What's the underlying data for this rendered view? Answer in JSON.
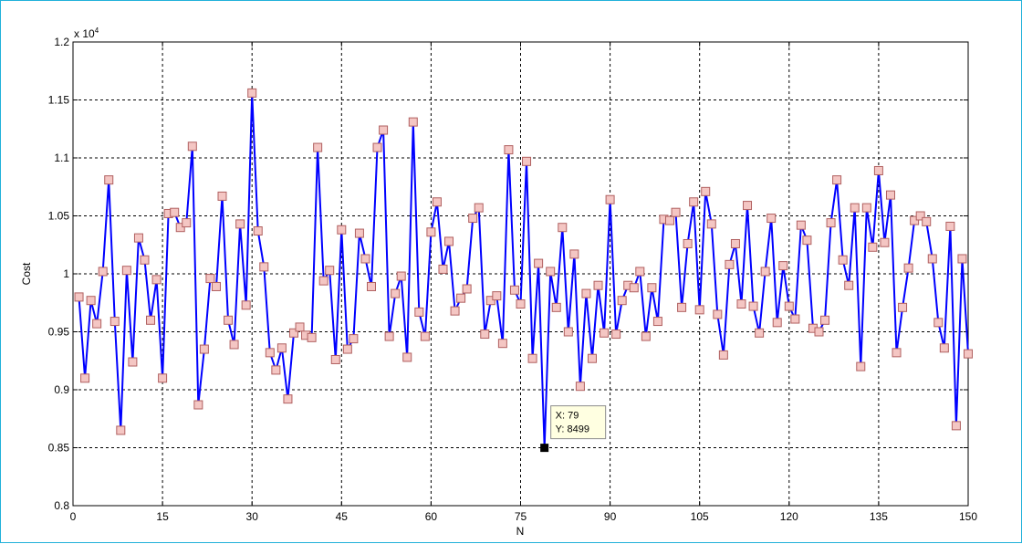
{
  "chart_data": {
    "type": "line",
    "title": "",
    "xlabel": "N",
    "ylabel": "Cost",
    "xlim": [
      0,
      150
    ],
    "ylim": [
      8000,
      12000
    ],
    "exponent_label": "x 10",
    "exponent_power": "4",
    "x_ticks": [
      0,
      15,
      30,
      45,
      60,
      75,
      90,
      105,
      120,
      135,
      150
    ],
    "x_tick_labels": [
      "0",
      "15",
      "30",
      "45",
      "60",
      "75",
      "90",
      "105",
      "120",
      "135",
      "150"
    ],
    "y_ticks": [
      8000,
      8500,
      9000,
      9500,
      10000,
      10500,
      11000,
      11500,
      12000
    ],
    "y_tick_labels": [
      "0.8",
      "0.85",
      "0.9",
      "0.95",
      "1",
      "1.05",
      "1.1",
      "1.15",
      "1.2"
    ],
    "grid": true,
    "line_color": "#0000ff",
    "marker_face": "#f4c6c3",
    "marker_edge": "#b06060",
    "series": [
      {
        "x": [
          1,
          2,
          3,
          4,
          5,
          6,
          7,
          8,
          9,
          10,
          11,
          12,
          13,
          14,
          15,
          16,
          17,
          18,
          19,
          20,
          21,
          22,
          23,
          24,
          25,
          26,
          27,
          28,
          29,
          30,
          31,
          32,
          33,
          34,
          35,
          36,
          37,
          38,
          39,
          40,
          41,
          42,
          43,
          44,
          45,
          46,
          47,
          48,
          49,
          50,
          51,
          52,
          53,
          54,
          55,
          56,
          57,
          58,
          59,
          60,
          61,
          62,
          63,
          64,
          65,
          66,
          67,
          68,
          69,
          70,
          71,
          72,
          73,
          74,
          75,
          76,
          77,
          78,
          79,
          80,
          81,
          82,
          83,
          84,
          85,
          86,
          87,
          88,
          89,
          90,
          91,
          92,
          93,
          94,
          95,
          96,
          97,
          98,
          99,
          100,
          101,
          102,
          103,
          104,
          105,
          106,
          107,
          108,
          109,
          110,
          111,
          112,
          113,
          114,
          115,
          116,
          117,
          118,
          119,
          120,
          121,
          122,
          123,
          124,
          125,
          126,
          127,
          128,
          129,
          130,
          131,
          132,
          133,
          134,
          135,
          136,
          137,
          138,
          139,
          140,
          141,
          142,
          143,
          144,
          145,
          146,
          147,
          148,
          149,
          150
        ],
        "y": [
          9800,
          9100,
          9770,
          9570,
          10020,
          10810,
          9590,
          8650,
          10030,
          9240,
          10310,
          10120,
          9600,
          9950,
          9100,
          10520,
          10530,
          10400,
          10440,
          11100,
          8870,
          9350,
          9960,
          9890,
          10670,
          9600,
          9390,
          10430,
          9730,
          11560,
          10370,
          10060,
          9320,
          9170,
          9360,
          8920,
          9490,
          9540,
          9470,
          9450,
          11090,
          9940,
          10030,
          9260,
          10380,
          9350,
          9440,
          10350,
          10130,
          9890,
          11090,
          11240,
          9460,
          9830,
          9980,
          9280,
          11310,
          9670,
          9460,
          10360,
          10620,
          10040,
          10280,
          9680,
          9790,
          9870,
          10480,
          10570,
          9480,
          9770,
          9810,
          9400,
          11070,
          9860,
          9740,
          10970,
          9270,
          10090,
          8499,
          10020,
          9710,
          10400,
          9500,
          10170,
          9030,
          9830,
          9270,
          9900,
          9490,
          10640,
          9480,
          9770,
          9900,
          9880,
          10020,
          9460,
          9880,
          9590,
          10470,
          10460,
          10530,
          9710,
          10260,
          10620,
          9690,
          10710,
          10430,
          9650,
          9300,
          10080,
          10260,
          9740,
          10590,
          9720,
          9490,
          10020,
          10480,
          9580,
          10070,
          9720,
          9610,
          10420,
          10290,
          9530,
          9500,
          9600,
          10440,
          10810,
          10120,
          9900,
          10570,
          9200,
          10570,
          10230,
          10890,
          10270,
          10680,
          9320,
          9710,
          10050,
          10460,
          10500,
          10450,
          10130,
          9580,
          9360,
          10410,
          8690,
          10130,
          9310
        ]
      }
    ],
    "datatip": {
      "x": 79,
      "y": 8499,
      "line1": "X: 79",
      "line2": "Y: 8499"
    }
  }
}
